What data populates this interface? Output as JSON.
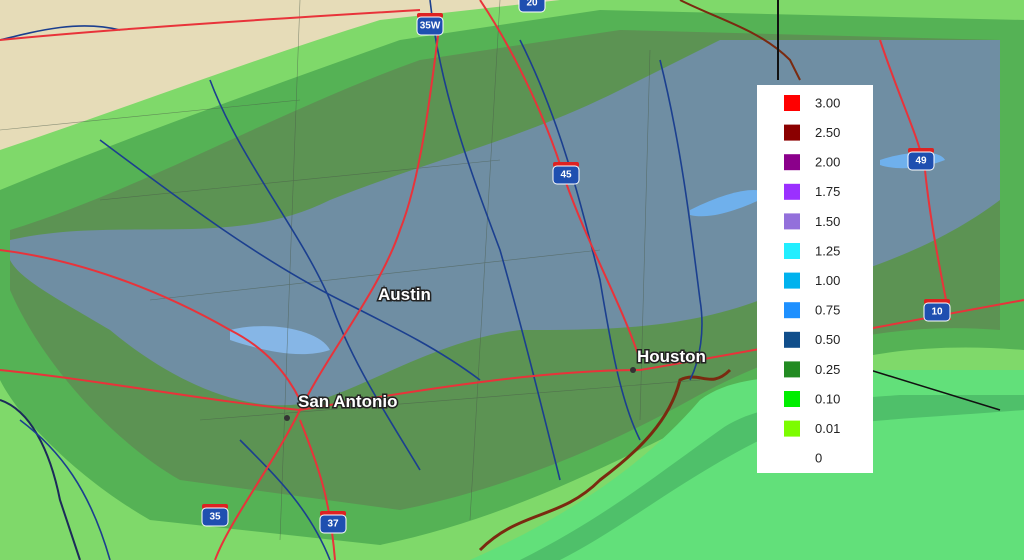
{
  "cities": [
    {
      "label": "Austin"
    },
    {
      "label": "San Antonio"
    },
    {
      "label": "Houston"
    }
  ],
  "highways": [
    {
      "label": "35W"
    },
    {
      "label": "20"
    },
    {
      "label": "45"
    },
    {
      "label": "49"
    },
    {
      "label": "10"
    },
    {
      "label": "35"
    },
    {
      "label": "37"
    }
  ],
  "legend": {
    "items": [
      {
        "label": "3.00",
        "color": "#ff0000"
      },
      {
        "label": "2.50",
        "color": "#8b0000"
      },
      {
        "label": "2.00",
        "color": "#8b008b"
      },
      {
        "label": "1.75",
        "color": "#9b30ff"
      },
      {
        "label": "1.50",
        "color": "#9370db"
      },
      {
        "label": "1.25",
        "color": "#22eeff"
      },
      {
        "label": "1.00",
        "color": "#00b2ee"
      },
      {
        "label": "0.75",
        "color": "#1e90ff"
      },
      {
        "label": "0.50",
        "color": "#104e8b"
      },
      {
        "label": "0.25",
        "color": "#228b22"
      },
      {
        "label": "0.10",
        "color": "#00ee00"
      },
      {
        "label": "0.01",
        "color": "#7cfc00"
      },
      {
        "label": "0"
      }
    ]
  }
}
